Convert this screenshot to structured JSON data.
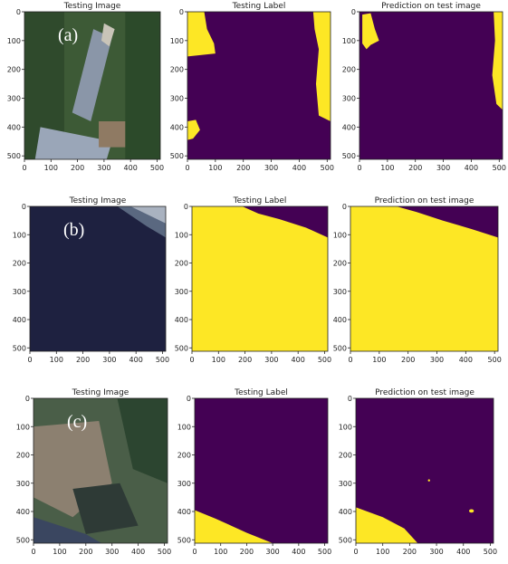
{
  "rows": [
    {
      "label": "(a)",
      "panels": [
        {
          "title": "Testing Image"
        },
        {
          "title": "Testing Label"
        },
        {
          "title": "Prediction on test image"
        }
      ]
    },
    {
      "label": "(b)",
      "panels": [
        {
          "title": "Testing Image"
        },
        {
          "title": "Testing Label"
        },
        {
          "title": "Prediction on test image"
        }
      ]
    },
    {
      "label": "(c)",
      "panels": [
        {
          "title": "Testing Image"
        },
        {
          "title": "Testing Label"
        },
        {
          "title": "Prediction on test image"
        }
      ]
    }
  ],
  "xlim": [
    0,
    512
  ],
  "ylim": [
    0,
    512
  ],
  "xticks": [
    0,
    100,
    200,
    300,
    400,
    500
  ],
  "yticks": [
    0,
    100,
    200,
    300,
    400,
    500
  ]
}
